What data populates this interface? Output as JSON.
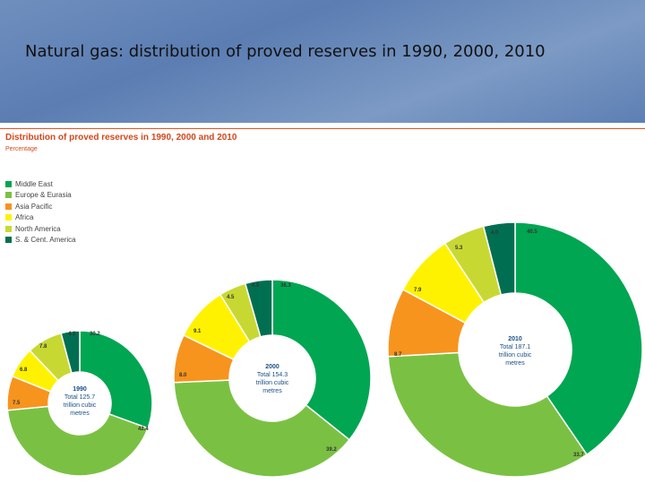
{
  "slide": {
    "title": "Natural gas: distribution of proved reserves in 1990, 2000, 2010"
  },
  "chart_data": {
    "type": "pie",
    "title": "Distribution of proved reserves in 1990, 2000 and 2010",
    "subtitle": "Percentage",
    "legend": [
      {
        "name": "Middle East",
        "color": "#00a651"
      },
      {
        "name": "Europe & Eurasia",
        "color": "#7ac143"
      },
      {
        "name": "Asia Pacific",
        "color": "#f7941d"
      },
      {
        "name": "Africa",
        "color": "#fff200"
      },
      {
        "name": "North America",
        "color": "#c8d832"
      },
      {
        "name": "S. & Cent. America",
        "color": "#006f51"
      }
    ],
    "charts": [
      {
        "year": "1990",
        "total_label": "Total 125.7",
        "unit_line1": "trillion cubic",
        "unit_line2": "metres",
        "values": [
          30.2,
          42.4,
          7.5,
          6.8,
          7.8,
          4.1
        ],
        "labels": [
          "30.2",
          "42.4",
          "7.5",
          "6.8",
          "7.8",
          "4.1"
        ]
      },
      {
        "year": "2000",
        "total_label": "Total 154.3",
        "unit_line1": "trillion cubic",
        "unit_line2": "metres",
        "values": [
          36.3,
          39.2,
          8.0,
          9.1,
          4.5,
          4.5
        ],
        "labels": [
          "36.3",
          "39.2",
          "8.0",
          "9.1",
          "4.5",
          "4.5"
        ]
      },
      {
        "year": "2010",
        "total_label": "Total 187.1",
        "unit_line1": "trillion cubic",
        "unit_line2": "metres",
        "values": [
          40.5,
          33.7,
          8.7,
          7.9,
          5.3,
          4.0
        ],
        "labels": [
          "40.5",
          "33.7",
          "8.7",
          "7.9",
          "5.3",
          "4.0"
        ]
      }
    ]
  }
}
